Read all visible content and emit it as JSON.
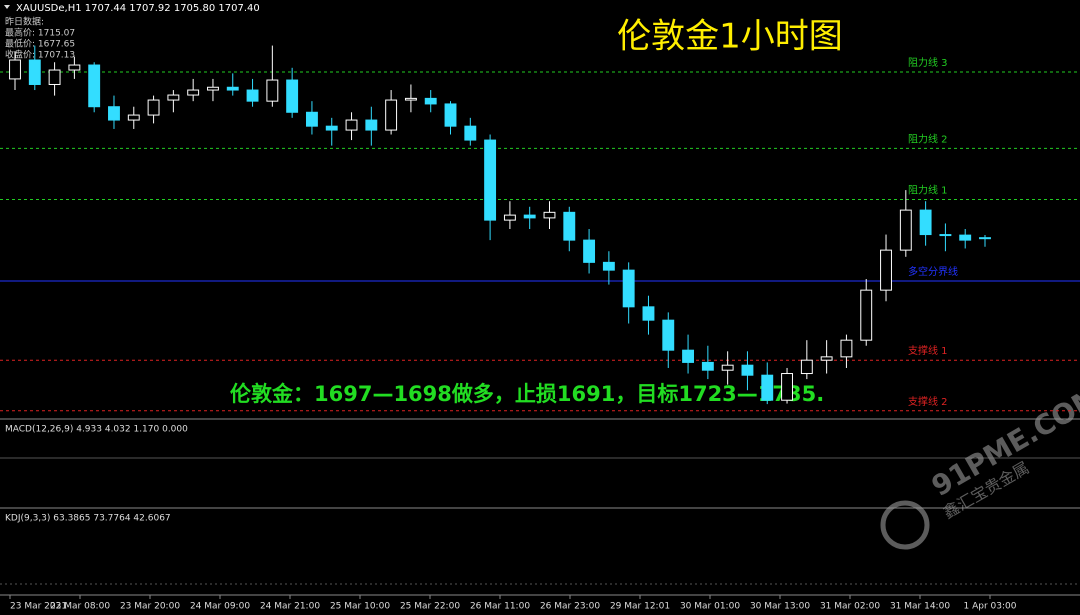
{
  "chart_data": {
    "type": "candlestick",
    "header": "XAUUSDe,H1  1707.44 1707.92 1705.80 1707.40",
    "prev_day": [
      "昨日数据:",
      "最高价: 1715.07",
      "最低价: 1677.65",
      "收盘价: 1707.13"
    ],
    "title": "伦敦金1小时图",
    "annotation": "伦敦金：1697—1698做多，止损1691，目标1723—1735.",
    "up_color": "#ffffff",
    "down_color": "#33ddff",
    "ylim": [
      1675,
      1747.5
    ],
    "open": [
      1736,
      1739.4,
      1735,
      1737.6,
      1738.5,
      1731,
      1728.6,
      1729.5,
      1732.2,
      1733.1,
      1734,
      1734.5,
      1734,
      1732,
      1735.8,
      1730,
      1727.5,
      1726.8,
      1728.6,
      1726.8,
      1732.2,
      1732.5,
      1731.5,
      1727.5,
      1725,
      1710.6,
      1711.5,
      1711,
      1712,
      1707,
      1703,
      1701.6,
      1695,
      1692.6,
      1687.2,
      1685,
      1683.6,
      1684.5,
      1682.7,
      1678.2,
      1683,
      1685.4,
      1686,
      1689,
      1698,
      1705.2,
      1712.4,
      1708,
      1707.9,
      1707.44
    ],
    "high": [
      1741,
      1742,
      1739,
      1740,
      1739,
      1733,
      1731,
      1733,
      1734,
      1736,
      1736,
      1737,
      1736,
      1742,
      1738,
      1732,
      1729,
      1730,
      1731,
      1734,
      1735,
      1734,
      1732,
      1729,
      1726,
      1714,
      1713,
      1714,
      1713,
      1709,
      1705,
      1703,
      1697,
      1694,
      1690,
      1688,
      1687,
      1687,
      1685,
      1684,
      1689,
      1689,
      1690,
      1700,
      1708,
      1716,
      1714,
      1710,
      1709,
      1707.92
    ],
    "low": [
      1734,
      1734,
      1733,
      1736,
      1730,
      1727,
      1727,
      1728,
      1730,
      1732,
      1732,
      1733,
      1731,
      1731,
      1729,
      1726,
      1724,
      1725,
      1724,
      1726,
      1730,
      1730,
      1726,
      1724,
      1707,
      1709,
      1709,
      1709,
      1705,
      1701,
      1699,
      1692,
      1690,
      1684,
      1683,
      1682,
      1681,
      1680,
      1677.5,
      1677.6,
      1682,
      1683,
      1684,
      1688,
      1696,
      1704,
      1706,
      1705,
      1705.5,
      1705.8
    ],
    "close": [
      1739.4,
      1735,
      1737.6,
      1738.5,
      1731,
      1728.6,
      1729.5,
      1732.2,
      1733.1,
      1734,
      1734.5,
      1734,
      1732,
      1735.8,
      1730,
      1727.5,
      1726.8,
      1728.6,
      1726.8,
      1732.2,
      1732.5,
      1731.5,
      1727.5,
      1725,
      1710.6,
      1711.5,
      1711,
      1712,
      1707,
      1703,
      1701.6,
      1695,
      1692.6,
      1687.2,
      1685,
      1683.6,
      1684.5,
      1682.7,
      1678.2,
      1683,
      1685.4,
      1686,
      1689,
      1698,
      1705.2,
      1712.4,
      1708,
      1707.9,
      1707,
      1707.4
    ],
    "levels": [
      {
        "name": "阻力线 3",
        "value": 1737.25,
        "color": "#22cc22"
      },
      {
        "name": "阻力线 2",
        "value": 1723.5,
        "color": "#22cc22"
      },
      {
        "name": "阻力线 1",
        "value": 1714.3,
        "color": "#22cc22"
      },
      {
        "name": "多空分界线",
        "value": 1699.65,
        "color": "#2233ff"
      },
      {
        "name": "支撑线 1",
        "value": 1685.4,
        "color": "#dd2222"
      },
      {
        "name": "支撑线 2",
        "value": 1676.3,
        "color": "#dd2222"
      }
    ],
    "x_labels": [
      "23 Mar 2021",
      "23 Mar 08:00",
      "23 Mar 20:00",
      "24 Mar 09:00",
      "24 Mar 21:00",
      "25 Mar 10:00",
      "25 Mar 22:00",
      "26 Mar 11:00",
      "26 Mar 23:00",
      "29 Mar 12:01",
      "30 Mar 01:00",
      "30 Mar 13:00",
      "31 Mar 02:00",
      "31 Mar 14:00",
      "1 Apr 03:00"
    ],
    "macd_label": "MACD(12,26,9) 4.933 4.032 1.170 0.000",
    "kdj_label": "KDJ(9,3,3) 63.3865 73.7764 42.6067",
    "watermark": "91PME.COM",
    "watermark_sub": "鑫汇宝贵金属"
  }
}
